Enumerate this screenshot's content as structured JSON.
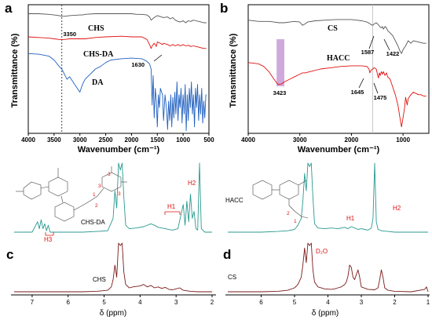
{
  "figure": {
    "panel_letters": [
      "a",
      "b",
      "c",
      "d"
    ]
  },
  "chart_data": [
    {
      "id": "a",
      "type": "line",
      "xlabel": "Wavenumber (cm⁻¹)",
      "ylabel": "Transmittance (%)",
      "xlim": [
        4000,
        500
      ],
      "xticks": [
        4000,
        3500,
        3000,
        2500,
        2000,
        1500,
        1000,
        500
      ],
      "grid": false,
      "dashed_marker": 3350,
      "annotations": [
        {
          "text": "3350",
          "x": 3350
        },
        {
          "text": "1630",
          "x": 1630
        }
      ],
      "series": [
        {
          "name": "CHS",
          "color": "#555555",
          "x": [
            4000,
            3800,
            3600,
            3500,
            3400,
            3350,
            3300,
            3200,
            3000,
            2950,
            2900,
            2700,
            2500,
            2200,
            2000,
            1900,
            1800,
            1700,
            1650,
            1620,
            1560,
            1500,
            1420,
            1380,
            1300,
            1250,
            1200,
            1150,
            1100,
            1060,
            1030,
            1000,
            950,
            900,
            850,
            800,
            750,
            700,
            650,
            600,
            550
          ],
          "y": [
            0.93,
            0.93,
            0.925,
            0.92,
            0.915,
            0.91,
            0.91,
            0.915,
            0.92,
            0.92,
            0.925,
            0.93,
            0.93,
            0.93,
            0.93,
            0.925,
            0.925,
            0.92,
            0.905,
            0.88,
            0.9,
            0.915,
            0.905,
            0.9,
            0.905,
            0.89,
            0.9,
            0.88,
            0.87,
            0.865,
            0.87,
            0.875,
            0.86,
            0.875,
            0.87,
            0.88,
            0.875,
            0.87,
            0.865,
            0.86,
            0.86
          ]
        },
        {
          "name": "CHS-DA",
          "color": "#e01010",
          "x": [
            4000,
            3800,
            3600,
            3500,
            3400,
            3350,
            3300,
            3200,
            3000,
            2900,
            2700,
            2500,
            2200,
            2000,
            1800,
            1700,
            1650,
            1620,
            1600,
            1560,
            1520,
            1500,
            1440,
            1400,
            1380,
            1300,
            1250,
            1200,
            1150,
            1100,
            1050,
            1000,
            950,
            900,
            850,
            800,
            750,
            700,
            650,
            600,
            550
          ],
          "y": [
            0.75,
            0.745,
            0.74,
            0.735,
            0.73,
            0.728,
            0.73,
            0.735,
            0.735,
            0.735,
            0.745,
            0.75,
            0.755,
            0.75,
            0.75,
            0.73,
            0.69,
            0.66,
            0.68,
            0.7,
            0.675,
            0.71,
            0.7,
            0.69,
            0.7,
            0.69,
            0.68,
            0.69,
            0.68,
            0.69,
            0.68,
            0.69,
            0.68,
            0.685,
            0.675,
            0.68,
            0.675,
            0.67,
            0.665,
            0.66,
            0.66
          ]
        },
        {
          "name": "DA",
          "color": "#2060c0",
          "x": [
            4000,
            3800,
            3600,
            3500,
            3400,
            3350,
            3300,
            3250,
            3200,
            3150,
            3100,
            3050,
            3000,
            2950,
            2900,
            2800,
            2700,
            2600,
            2500,
            2400,
            2200,
            2000,
            1800,
            1700,
            1650,
            1620,
            1600,
            1580,
            1560,
            1540,
            1520,
            1500,
            1480,
            1460,
            1440,
            1400,
            1380,
            1350,
            1320,
            1300,
            1280,
            1260,
            1240,
            1220,
            1200,
            1180,
            1160,
            1140,
            1120,
            1100,
            1080,
            1060,
            1040,
            1020,
            1000,
            980,
            960,
            940,
            920,
            900,
            880,
            860,
            840,
            820,
            800,
            780,
            760,
            740,
            720,
            700,
            680,
            660,
            640,
            620,
            600,
            580,
            560,
            550
          ],
          "y": [
            0.62,
            0.615,
            0.6,
            0.57,
            0.52,
            0.5,
            0.46,
            0.42,
            0.44,
            0.41,
            0.38,
            0.35,
            0.32,
            0.38,
            0.42,
            0.46,
            0.5,
            0.52,
            0.55,
            0.57,
            0.58,
            0.585,
            0.58,
            0.56,
            0.54,
            0.5,
            0.22,
            0.45,
            0.12,
            0.35,
            0.25,
            0.05,
            0.3,
            0.2,
            0.35,
            0.3,
            0.1,
            0.3,
            0.18,
            0.03,
            0.25,
            0.1,
            0.3,
            0.05,
            0.28,
            0.12,
            0.32,
            0.15,
            0.4,
            0.1,
            0.3,
            0.2,
            0.35,
            0.08,
            0.3,
            0.15,
            0.38,
            0.02,
            0.3,
            0.1,
            0.35,
            0.2,
            0.4,
            0.15,
            0.3,
            0.05,
            0.35,
            0.2,
            0.38,
            0.1,
            0.3,
            0.15,
            0.35,
            0.08,
            0.25,
            0.12,
            0.3,
            0.3
          ]
        }
      ]
    },
    {
      "id": "b",
      "type": "line",
      "xlabel": "Wavenumber (cm⁻¹)",
      "ylabel": "Transmittance (%)",
      "xlim": [
        4000,
        500
      ],
      "xticks": [
        4000,
        3000,
        2000,
        1000
      ],
      "grid": false,
      "highlight_band": [
        3450,
        3300
      ],
      "vertical_marker": 1587,
      "annotations": [
        {
          "text": "1587",
          "x": 1587
        },
        {
          "text": "1422",
          "x": 1422
        },
        {
          "text": "3423",
          "x": 3423
        },
        {
          "text": "1645",
          "x": 1645
        },
        {
          "text": "1475",
          "x": 1475
        }
      ],
      "series": [
        {
          "name": "CS",
          "color": "#555555",
          "x": [
            4000,
            3800,
            3600,
            3500,
            3400,
            3300,
            3200,
            3100,
            3000,
            2950,
            2900,
            2850,
            2700,
            2500,
            2300,
            2100,
            2000,
            1900,
            1800,
            1700,
            1650,
            1620,
            1587,
            1560,
            1520,
            1480,
            1450,
            1422,
            1400,
            1380,
            1350,
            1320,
            1300,
            1250,
            1200,
            1150,
            1100,
            1060,
            1030,
            1000,
            950,
            900,
            850,
            800,
            700,
            600,
            550
          ],
          "y": [
            0.88,
            0.87,
            0.87,
            0.865,
            0.86,
            0.86,
            0.865,
            0.87,
            0.865,
            0.84,
            0.85,
            0.865,
            0.875,
            0.88,
            0.885,
            0.885,
            0.885,
            0.88,
            0.875,
            0.865,
            0.855,
            0.845,
            0.84,
            0.85,
            0.86,
            0.845,
            0.83,
            0.82,
            0.83,
            0.81,
            0.83,
            0.82,
            0.8,
            0.78,
            0.76,
            0.72,
            0.68,
            0.64,
            0.62,
            0.65,
            0.68,
            0.72,
            0.7,
            0.72,
            0.71,
            0.7,
            0.7
          ]
        },
        {
          "name": "HACC",
          "color": "#e01010",
          "x": [
            4000,
            3900,
            3800,
            3700,
            3600,
            3500,
            3423,
            3350,
            3300,
            3200,
            3100,
            3000,
            2950,
            2900,
            2800,
            2600,
            2400,
            2200,
            2000,
            1900,
            1800,
            1700,
            1660,
            1645,
            1620,
            1590,
            1560,
            1520,
            1490,
            1475,
            1460,
            1440,
            1420,
            1400,
            1380,
            1350,
            1320,
            1300,
            1250,
            1200,
            1150,
            1100,
            1060,
            1030,
            1000,
            970,
            950,
            920,
            900,
            850,
            800,
            750,
            700,
            650,
            600,
            550
          ],
          "y": [
            0.55,
            0.545,
            0.54,
            0.52,
            0.48,
            0.42,
            0.38,
            0.385,
            0.4,
            0.42,
            0.44,
            0.46,
            0.47,
            0.47,
            0.48,
            0.5,
            0.51,
            0.52,
            0.525,
            0.525,
            0.525,
            0.52,
            0.5,
            0.47,
            0.49,
            0.5,
            0.51,
            0.5,
            0.45,
            0.43,
            0.47,
            0.45,
            0.48,
            0.46,
            0.48,
            0.45,
            0.47,
            0.44,
            0.42,
            0.36,
            0.3,
            0.22,
            0.12,
            0.05,
            0.12,
            0.2,
            0.28,
            0.22,
            0.27,
            0.3,
            0.32,
            0.31,
            0.3,
            0.3,
            0.29,
            0.29
          ]
        }
      ]
    },
    {
      "id": "c",
      "type": "line",
      "xlabel": "δ (ppm)",
      "xlim": [
        7.5,
        2
      ],
      "xticks": [
        7,
        6,
        5,
        4,
        3,
        2
      ],
      "grid": false,
      "labels": {
        "upper": "CHS-DA",
        "lower": "CHS",
        "h1": "H1",
        "h2": "H2",
        "h3": "H3"
      },
      "series": [
        {
          "name": "CHS-DA",
          "color": "#2a9a90",
          "x": [
            7.5,
            7.0,
            6.85,
            6.8,
            6.75,
            6.7,
            6.65,
            6.6,
            6.55,
            6.5,
            6.0,
            5.6,
            5.2,
            4.9,
            4.75,
            4.7,
            4.65,
            4.6,
            4.55,
            4.5,
            4.45,
            4.4,
            4.3,
            4.1,
            3.9,
            3.7,
            3.6,
            3.5,
            3.3,
            3.1,
            2.95,
            2.8,
            2.75,
            2.7,
            2.65,
            2.6,
            2.55,
            2.5,
            2.45,
            2.4,
            2.35,
            2.3,
            2.2,
            2.0
          ],
          "y": [
            0.0,
            0.0,
            0.15,
            0.05,
            0.18,
            0.05,
            0.12,
            0.02,
            0.1,
            0.0,
            0.0,
            0.0,
            0.01,
            0.02,
            0.2,
            0.6,
            0.35,
            1.0,
            0.9,
            1.0,
            0.5,
            0.1,
            0.05,
            0.06,
            0.08,
            0.12,
            0.1,
            0.07,
            0.05,
            0.03,
            0.05,
            0.4,
            0.1,
            0.45,
            0.15,
            0.55,
            0.2,
            0.3,
            0.05,
            0.03,
            1.0,
            0.05,
            0.0,
            0.0
          ]
        },
        {
          "name": "CHS",
          "color": "#7a1a1a",
          "x": [
            7.5,
            7.0,
            6.5,
            6.0,
            5.6,
            5.2,
            4.9,
            4.8,
            4.75,
            4.7,
            4.65,
            4.6,
            4.55,
            4.5,
            4.45,
            4.4,
            4.3,
            4.2,
            4.0,
            3.9,
            3.8,
            3.7,
            3.6,
            3.5,
            3.4,
            3.3,
            3.2,
            3.1,
            3.0,
            2.9,
            2.8,
            2.6,
            2.4,
            2.2,
            2.0
          ],
          "y": [
            0.0,
            0.0,
            0.0,
            0.0,
            0.0,
            0.01,
            0.03,
            0.1,
            0.25,
            0.55,
            0.3,
            1.0,
            0.95,
            1.0,
            0.4,
            0.15,
            0.08,
            0.1,
            0.12,
            0.15,
            0.1,
            0.13,
            0.08,
            0.1,
            0.07,
            0.09,
            0.05,
            0.04,
            0.06,
            0.08,
            0.03,
            0.01,
            0.0,
            0.0,
            0.0
          ]
        }
      ]
    },
    {
      "id": "d",
      "type": "line",
      "xlabel": "δ (ppm)",
      "xlim": [
        7,
        1
      ],
      "xticks": [
        6,
        5,
        4,
        3,
        2,
        1
      ],
      "grid": false,
      "labels": {
        "upper": "HACC",
        "lower": "CS",
        "h1": "H1",
        "h2": "H2",
        "d2o": "D₂O"
      },
      "series": [
        {
          "name": "HACC",
          "color": "#2a9a90",
          "x": [
            7.0,
            6.5,
            6.0,
            5.5,
            5.2,
            5.0,
            4.9,
            4.8,
            4.75,
            4.7,
            4.65,
            4.6,
            4.55,
            4.5,
            4.45,
            4.4,
            4.3,
            4.1,
            3.9,
            3.7,
            3.5,
            3.4,
            3.3,
            3.2,
            3.1,
            3.0,
            2.9,
            2.8,
            2.7,
            2.65,
            2.6,
            2.55,
            2.5,
            2.4,
            2.2,
            2.0,
            1.5,
            1.0
          ],
          "y": [
            0.0,
            0.0,
            0.0,
            0.01,
            0.02,
            0.04,
            0.1,
            0.2,
            0.45,
            0.85,
            0.6,
            1.0,
            0.95,
            1.0,
            0.5,
            0.12,
            0.06,
            0.05,
            0.06,
            0.05,
            0.07,
            0.05,
            0.08,
            0.06,
            0.04,
            0.05,
            0.04,
            0.03,
            0.06,
            0.2,
            1.0,
            0.15,
            0.04,
            0.02,
            0.01,
            0.0,
            0.0,
            0.0
          ]
        },
        {
          "name": "CS",
          "color": "#7a1a1a",
          "x": [
            7.0,
            6.5,
            6.0,
            5.5,
            5.2,
            5.0,
            4.9,
            4.8,
            4.75,
            4.7,
            4.65,
            4.6,
            4.55,
            4.5,
            4.45,
            4.4,
            4.3,
            4.1,
            3.9,
            3.8,
            3.7,
            3.6,
            3.5,
            3.45,
            3.4,
            3.35,
            3.3,
            3.25,
            3.2,
            3.15,
            3.1,
            3.05,
            3.0,
            2.8,
            2.6,
            2.5,
            2.45,
            2.4,
            2.35,
            2.3,
            2.2,
            2.0,
            1.5,
            1.1,
            1.05,
            1.0
          ],
          "y": [
            0.0,
            0.0,
            0.0,
            0.01,
            0.03,
            0.08,
            0.15,
            0.3,
            0.55,
            0.9,
            0.6,
            1.0,
            0.95,
            1.0,
            0.45,
            0.2,
            0.1,
            0.06,
            0.05,
            0.06,
            0.08,
            0.1,
            0.15,
            0.2,
            0.32,
            0.55,
            0.5,
            0.3,
            0.25,
            0.35,
            0.45,
            0.3,
            0.1,
            0.05,
            0.04,
            0.08,
            0.25,
            0.45,
            0.3,
            0.08,
            0.03,
            0.01,
            0.0,
            0.05,
            0.1,
            0.0
          ]
        }
      ]
    }
  ]
}
